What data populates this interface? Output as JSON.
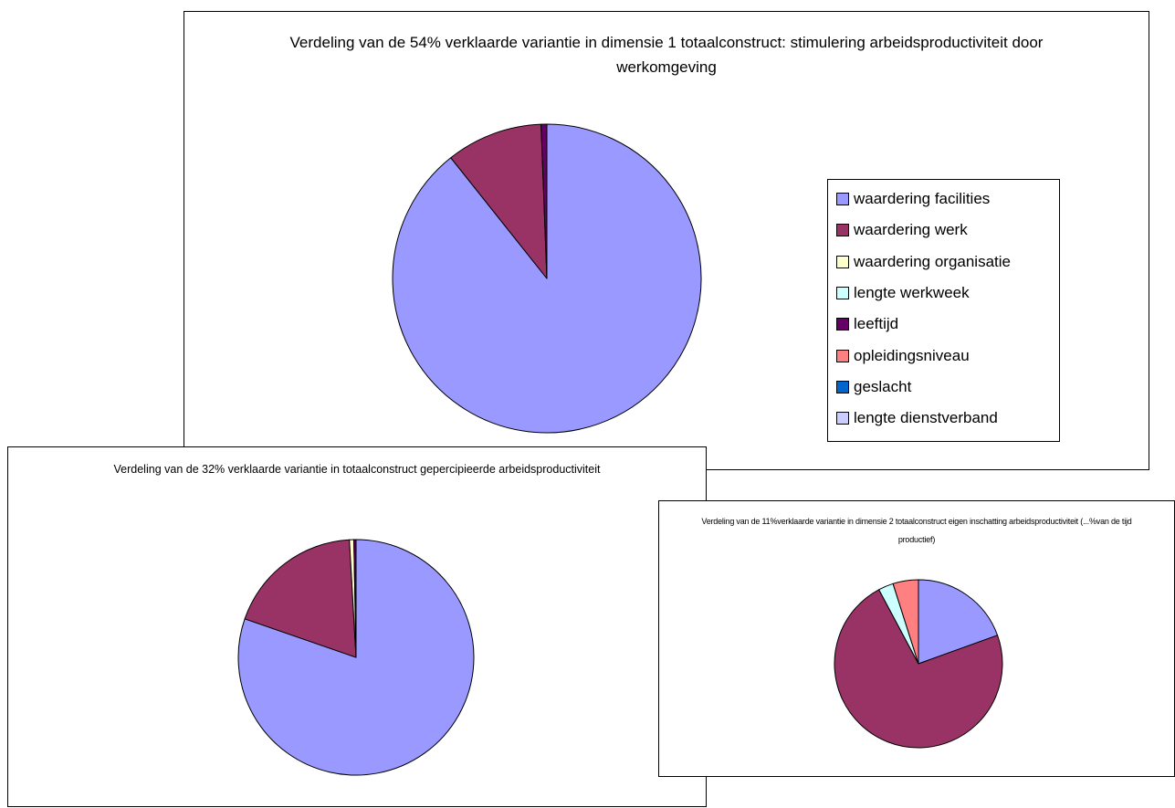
{
  "chart_data": [
    {
      "type": "pie",
      "title": "Verdeling van de 54% verklaarde variantie in dimensie 1 totaalconstruct: stimulering arbeidsproductiviteit door werkomgeving",
      "categories": [
        "waardering facilities",
        "waardering werk",
        "waardering organisatie",
        "lengte werkweek",
        "leeftijd",
        "opleidingsniveau",
        "geslacht",
        "lengte dienstverband"
      ],
      "values": [
        89.3,
        10.1,
        0,
        0,
        0.6,
        0,
        0,
        0
      ],
      "legend": "right"
    },
    {
      "type": "pie",
      "title": "Verdeling van de 32% verklaarde variantie in totaalconstruct gepercipieerde arbeidsproductiviteit",
      "categories": [
        "waardering facilities",
        "waardering werk",
        "waardering organisatie",
        "lengte werkweek",
        "leeftijd",
        "opleidingsniveau",
        "geslacht",
        "lengte dienstverband"
      ],
      "values": [
        80.3,
        18.8,
        0.6,
        0,
        0.3,
        0,
        0,
        0
      ]
    },
    {
      "type": "pie",
      "title": "Verdeling van de 11%verklaarde variantie in dimensie 2 totaalconstruct eigen inschatting arbeidsproductiviteit (...%van de tijd productief)",
      "categories": [
        "waardering facilities",
        "waardering werk",
        "waardering organisatie",
        "lengte werkweek",
        "leeftijd",
        "opleidingsniveau",
        "geslacht",
        "lengte dienstverband"
      ],
      "values": [
        19.5,
        72.7,
        0,
        2.9,
        0,
        4.9,
        0,
        0
      ]
    }
  ],
  "legend": {
    "items": [
      {
        "label": "waardering facilities",
        "color": "#9999FF"
      },
      {
        "label": "waardering werk",
        "color": "#993366"
      },
      {
        "label": "waardering organisatie",
        "color": "#FFFFCC"
      },
      {
        "label": "lengte werkweek",
        "color": "#CCFFFF"
      },
      {
        "label": "leeftijd",
        "color": "#660066"
      },
      {
        "label": "opleidingsniveau",
        "color": "#FF8080"
      },
      {
        "label": "geslacht",
        "color": "#0066CC"
      },
      {
        "label": "lengte dienstverband",
        "color": "#CCCCFF"
      }
    ]
  }
}
